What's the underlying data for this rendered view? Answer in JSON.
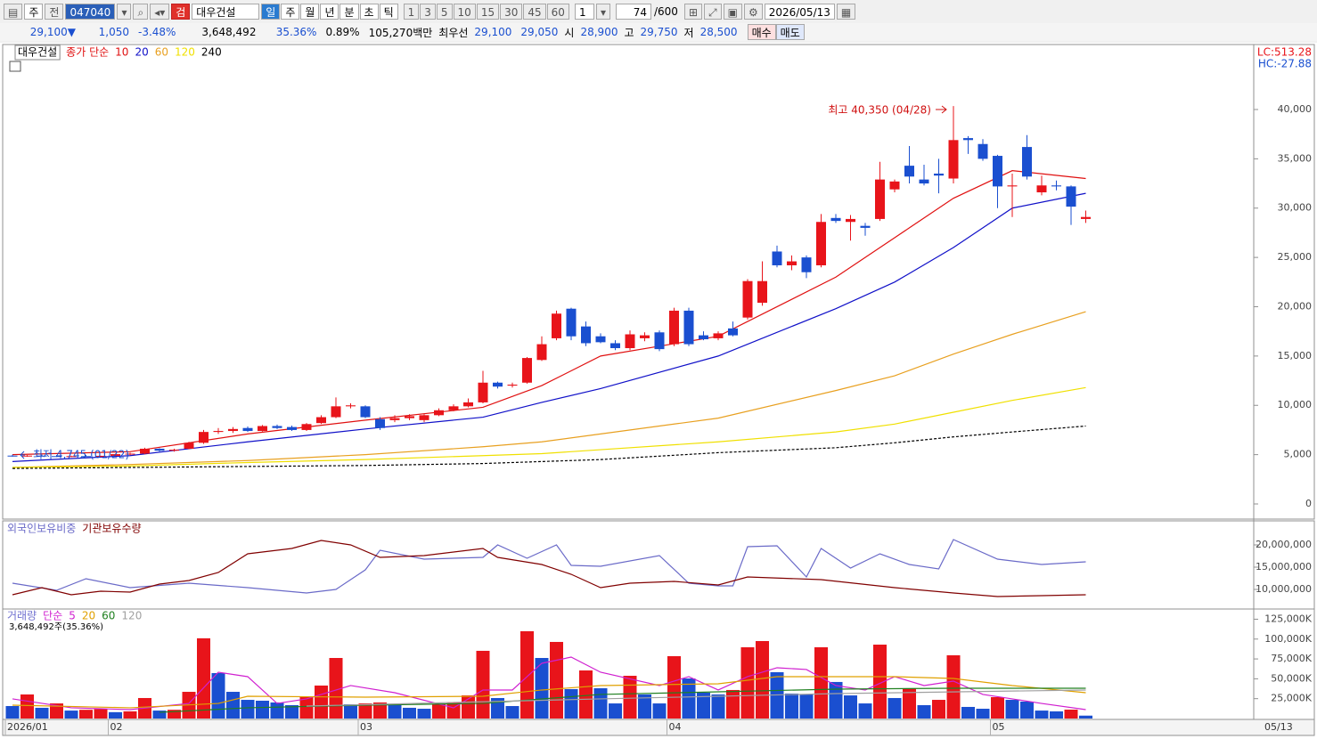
{
  "toolbar": {
    "type_select": "주",
    "all": "전",
    "code": "047040",
    "search_badge": "검",
    "name": "대우건설",
    "periods": [
      "일",
      "주",
      "월",
      "년",
      "분",
      "초",
      "틱"
    ],
    "intervals": [
      "1",
      "3",
      "5",
      "10",
      "15",
      "30",
      "45",
      "60"
    ],
    "interval_input": "1",
    "count": "74",
    "count_max": "/600",
    "date": "2026/05/13"
  },
  "quote": {
    "price": "29,100▼",
    "change": "1,050",
    "change_rate": "-3.48%",
    "volume": "3,648,492",
    "turnover": "35.36%",
    "ratio": "0.89%",
    "amount": "105,270백만",
    "best_label": "최우선",
    "best_ask": "29,100",
    "best_bid": "29,050",
    "open_label": "시",
    "open": "28,900",
    "high_label": "고",
    "high": "29,750",
    "low_label": "저",
    "low": "28,500",
    "buy": "매수",
    "sell": "매도"
  },
  "chart_data": [
    {
      "type": "candlestick",
      "name": "대우건설",
      "legend_prefix": "종가 단순",
      "up_color": "#e8141a",
      "down_color": "#1a4fd0",
      "right_labels": [
        {
          "text": "LC:513.28",
          "color": "#e8141a"
        },
        {
          "text": "HC:-27.88",
          "color": "#1a4fd0"
        }
      ],
      "annotations": [
        {
          "text": "최고 40,350 (04/28)",
          "color": "#d01010"
        },
        {
          "text": "최저 4,745 (01/22)",
          "color": "#1a4fd0"
        }
      ],
      "ylim": [
        -1445,
        46410
      ],
      "yticks": [
        {
          "value": 40000,
          "label": "40,000"
        },
        {
          "value": 35000,
          "label": "35,000"
        },
        {
          "value": 30000,
          "label": "30,000"
        },
        {
          "value": 25000,
          "label": "25,000"
        },
        {
          "value": 20000,
          "label": "20,000"
        },
        {
          "value": 15000,
          "label": "15,000"
        },
        {
          "value": 10000,
          "label": "10,000"
        },
        {
          "value": 5000,
          "label": "5,000"
        },
        0
      ],
      "open": [
        4900,
        4850,
        4900,
        4850,
        4800,
        4850,
        4820,
        4880,
        5050,
        5100,
        5600,
        5400,
        5600,
        6200,
        7300,
        7400,
        7700,
        7400,
        7900,
        7800,
        7500,
        8200,
        8800,
        9900,
        9900,
        8600,
        8500,
        8700,
        8500,
        9000,
        9500,
        9900,
        10300,
        12300,
        12000,
        12300,
        14600,
        16800,
        19800,
        18000,
        17000,
        16300,
        15800,
        16800,
        17400,
        16200,
        19600,
        17100,
        16800,
        17800,
        18900,
        20400,
        25600,
        24200,
        25000,
        24200,
        29000,
        28600,
        28200,
        28900,
        31900,
        34300,
        32900,
        33500,
        33000,
        37100,
        36500,
        35300,
        32200,
        36200,
        31600,
        32300,
        32200,
        28900
      ],
      "high": [
        5000,
        4950,
        5000,
        4950,
        4900,
        4950,
        4900,
        5100,
        5200,
        5700,
        5650,
        5600,
        6300,
        7500,
        7700,
        7800,
        7850,
        8000,
        8050,
        7950,
        8200,
        9000,
        10800,
        10200,
        10000,
        8800,
        9000,
        9100,
        9100,
        9700,
        10100,
        10700,
        13500,
        12400,
        12300,
        14900,
        17000,
        19600,
        19900,
        18500,
        17300,
        16600,
        17600,
        17400,
        17600,
        19900,
        19900,
        17500,
        17500,
        18500,
        22800,
        24600,
        26200,
        25200,
        25200,
        29400,
        29400,
        29300,
        28500,
        34700,
        32900,
        36300,
        34400,
        35000,
        40350,
        37300,
        37000,
        35400,
        33500,
        37400,
        33300,
        32800,
        32300,
        29750
      ],
      "low": [
        4800,
        4780,
        4800,
        4760,
        4750,
        4780,
        4745,
        4850,
        4950,
        5050,
        5300,
        5300,
        5550,
        6100,
        7100,
        7200,
        7300,
        7350,
        7600,
        7400,
        7400,
        8100,
        8700,
        9700,
        8700,
        7500,
        8300,
        8500,
        8300,
        8900,
        9400,
        9800,
        10200,
        11700,
        11800,
        12200,
        14500,
        16600,
        16600,
        16000,
        16300,
        15600,
        15600,
        16500,
        15500,
        16000,
        16000,
        16600,
        16600,
        17000,
        18700,
        20100,
        24000,
        23700,
        22900,
        24000,
        28500,
        26700,
        27200,
        28700,
        31600,
        32500,
        32300,
        31500,
        32500,
        35500,
        34800,
        30000,
        29100,
        32900,
        31300,
        31800,
        28300,
        28500
      ],
      "close": [
        4850,
        4900,
        4850,
        4800,
        4850,
        4820,
        4880,
        5050,
        5100,
        5600,
        5400,
        5500,
        6200,
        7300,
        7400,
        7600,
        7400,
        7900,
        7700,
        7500,
        8100,
        8800,
        9900,
        10000,
        8800,
        7700,
        8700,
        8900,
        9000,
        9500,
        9900,
        10300,
        12300,
        11900,
        12100,
        14800,
        16200,
        19300,
        17000,
        16300,
        16400,
        15800,
        17200,
        17100,
        15700,
        19600,
        16200,
        16700,
        17300,
        17100,
        22600,
        22600,
        24200,
        24600,
        23500,
        28600,
        28700,
        28900,
        28000,
        32900,
        32700,
        33200,
        32500,
        33300,
        36900,
        36900,
        35000,
        32200,
        32300,
        33200,
        32300,
        32200,
        30150,
        29100
      ],
      "series": [
        {
          "name": "10",
          "color": "#e01010",
          "x": [
            0,
            8,
            16,
            24,
            32,
            36,
            40,
            48,
            56,
            60,
            64,
            68,
            73
          ],
          "values": [
            5000,
            5300,
            7100,
            8500,
            9800,
            12000,
            15000,
            17000,
            23000,
            27000,
            31000,
            33800,
            33000
          ]
        },
        {
          "name": "20",
          "color": "#1010c8",
          "x": [
            0,
            8,
            16,
            24,
            32,
            36,
            40,
            48,
            56,
            60,
            64,
            68,
            73
          ],
          "values": [
            4300,
            4900,
            6300,
            7600,
            8800,
            10300,
            11700,
            15000,
            19800,
            22500,
            26000,
            30000,
            31500
          ]
        },
        {
          "name": "60",
          "color": "#e8a020",
          "x": [
            0,
            8,
            16,
            24,
            32,
            36,
            40,
            48,
            56,
            60,
            64,
            68,
            73
          ],
          "values": [
            3700,
            4000,
            4400,
            5000,
            5800,
            6300,
            7100,
            8700,
            11500,
            13000,
            15200,
            17200,
            19500
          ]
        },
        {
          "name": "120",
          "color": "#f0e000",
          "x": [
            0,
            8,
            16,
            24,
            32,
            36,
            40,
            48,
            56,
            60,
            64,
            68,
            73
          ],
          "values": [
            3700,
            3850,
            4200,
            4500,
            4900,
            5100,
            5500,
            6300,
            7300,
            8100,
            9300,
            10500,
            11800
          ]
        },
        {
          "name": "240",
          "color": "#000000",
          "dashed": true,
          "x": [
            0,
            8,
            16,
            24,
            32,
            36,
            40,
            48,
            56,
            60,
            64,
            68,
            73
          ],
          "values": [
            3600,
            3700,
            3800,
            3900,
            4100,
            4300,
            4500,
            5200,
            5700,
            6200,
            6800,
            7300,
            7900
          ]
        }
      ]
    },
    {
      "type": "line",
      "ylim": [
        6000000,
        24800000
      ],
      "yticks": [
        {
          "value": 20000000,
          "label": "20,000,000"
        },
        {
          "value": 15000000,
          "label": "15,000,000"
        },
        {
          "value": 10000000,
          "label": "10,000,000"
        }
      ],
      "series": [
        {
          "name": "외국인보유비중",
          "color": "#6a6ac8",
          "x": [
            0,
            3,
            5,
            8,
            12,
            16,
            20,
            22,
            24,
            25,
            28,
            32,
            33,
            35,
            37,
            38,
            40,
            44,
            46,
            48,
            49,
            50,
            52,
            54,
            55,
            57,
            59,
            61,
            63,
            64,
            67,
            70,
            73
          ],
          "values": [
            11400000,
            9800000,
            12400000,
            10400000,
            11400000,
            10400000,
            9200000,
            10000000,
            14400000,
            18800000,
            16800000,
            17200000,
            20000000,
            17000000,
            20000000,
            15400000,
            15200000,
            17600000,
            11400000,
            10800000,
            10800000,
            19600000,
            19800000,
            12800000,
            19200000,
            14800000,
            18000000,
            15600000,
            14600000,
            21200000,
            16800000,
            15600000,
            16200000
          ]
        },
        {
          "name": "기관보유수량",
          "color": "#800000",
          "x": [
            0,
            2,
            4,
            6,
            8,
            10,
            12,
            14,
            16,
            19,
            21,
            23,
            25,
            28,
            32,
            33,
            36,
            38,
            40,
            42,
            45,
            48,
            50,
            55,
            60,
            64,
            67,
            70,
            73
          ],
          "values": [
            8800000,
            10400000,
            8800000,
            9600000,
            9400000,
            11200000,
            12000000,
            13800000,
            18000000,
            19200000,
            21000000,
            20000000,
            17200000,
            17600000,
            19200000,
            17200000,
            15600000,
            13400000,
            10400000,
            11400000,
            11800000,
            11000000,
            12800000,
            12200000,
            10400000,
            9200000,
            8400000,
            8600000,
            8800000
          ]
        }
      ]
    },
    {
      "type": "bar",
      "name": "거래량",
      "legend_prefix": "단순",
      "subtitle": "3,648,492주(35.36%)",
      "up_color": "#e8141a",
      "down_color": "#1a4fd0",
      "end_label": "05/13",
      "categories": [
        "2026/01",
        null,
        null,
        null,
        null,
        null,
        null,
        "02",
        null,
        null,
        null,
        null,
        null,
        null,
        null,
        null,
        null,
        null,
        null,
        null,
        null,
        null,
        null,
        null,
        "03",
        null,
        null,
        null,
        null,
        null,
        null,
        null,
        null,
        null,
        null,
        null,
        null,
        null,
        null,
        null,
        null,
        null,
        null,
        null,
        null,
        "04",
        null,
        null,
        null,
        null,
        null,
        null,
        null,
        null,
        null,
        null,
        null,
        null,
        null,
        null,
        null,
        null,
        null,
        null,
        null,
        null,
        null,
        "05",
        null,
        null,
        null,
        null,
        null,
        null
      ],
      "ylim": [
        0,
        135600
      ],
      "yticks": [
        {
          "value": 125000,
          "label": "125,000K"
        },
        {
          "value": 100000,
          "label": "100,000K"
        },
        {
          "value": 75000,
          "label": "75,000K"
        },
        {
          "value": 50000,
          "label": "50,000K"
        },
        {
          "value": 25000,
          "label": "25,000K"
        }
      ],
      "values": [
        15700,
        30300,
        13500,
        19000,
        10000,
        11000,
        12000,
        8000,
        9000,
        25800,
        10000,
        11000,
        33600,
        101000,
        57200,
        33600,
        23500,
        22400,
        20200,
        16800,
        28000,
        41500,
        76200,
        17900,
        19000,
        20200,
        16800,
        13500,
        12300,
        17900,
        20200,
        29100,
        85200,
        25800,
        15700,
        109900,
        76200,
        96400,
        37000,
        60500,
        38100,
        19000,
        53800,
        30300,
        19000,
        78500,
        50400,
        32500,
        30300,
        35900,
        89700,
        97500,
        58300,
        31400,
        30300,
        89700,
        46000,
        29100,
        19000,
        93000,
        25800,
        38100,
        16800,
        23500,
        79600,
        14600,
        12300,
        26900,
        23500,
        21300,
        10000,
        9000,
        11200,
        3648
      ],
      "series": [
        {
          "name": "5",
          "color": "#d020d0",
          "x": [
            0,
            4,
            8,
            12,
            14,
            16,
            18,
            20,
            23,
            26,
            30,
            32,
            34,
            36,
            38,
            40,
            44,
            46,
            48,
            50,
            52,
            54,
            56,
            58,
            60,
            62,
            64,
            66,
            68,
            70,
            73
          ],
          "values": [
            24700,
            13500,
            11200,
            19000,
            58300,
            52700,
            19000,
            24700,
            41500,
            32500,
            13500,
            35900,
            35900,
            69500,
            77300,
            58300,
            41500,
            52700,
            35900,
            52700,
            63900,
            61700,
            41500,
            35900,
            52700,
            41500,
            47100,
            30300,
            24700,
            19000,
            11200
          ]
        },
        {
          "name": "20",
          "color": "#e0a000",
          "x": [
            0,
            8,
            14,
            16,
            24,
            32,
            36,
            40,
            48,
            52,
            56,
            60,
            64,
            68,
            73
          ],
          "values": [
            16800,
            13500,
            19000,
            28000,
            26900,
            28000,
            35900,
            41500,
            43700,
            52700,
            52700,
            52700,
            50400,
            41500,
            32500
          ]
        },
        {
          "name": "60",
          "color": "#208020",
          "x": [
            10,
            16,
            24,
            32,
            40,
            48,
            56,
            64,
            73
          ],
          "values": [
            7800,
            13500,
            16800,
            19000,
            30300,
            33600,
            37000,
            38100,
            38100
          ]
        },
        {
          "name": "120",
          "color": "#a0a0a0",
          "x": [
            20,
            40,
            56,
            73
          ],
          "values": [
            15700,
            24700,
            31400,
            35900
          ]
        }
      ]
    }
  ]
}
